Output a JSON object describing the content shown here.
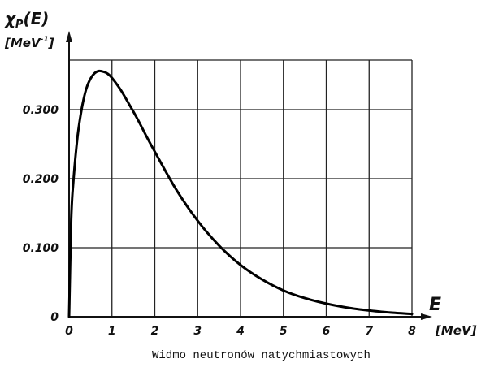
{
  "chart_data": {
    "type": "line",
    "title": "",
    "caption": "Widmo neutronów natychmiastowych",
    "ylabel": {
      "symbol": "χ",
      "subscript": "P",
      "argument": "(E)",
      "unit": "MeV",
      "unit_exponent": "-1"
    },
    "xlabel": {
      "symbol": "E",
      "unit": "MeV"
    },
    "xlim": [
      0,
      8
    ],
    "ylim": [
      0,
      0.36
    ],
    "x_ticks": [
      0,
      1,
      2,
      3,
      4,
      5,
      6,
      7,
      8
    ],
    "x_tick_labels": [
      "0",
      "1",
      "2",
      "3",
      "4",
      "5",
      "6",
      "7",
      "8"
    ],
    "y_ticks": [
      0,
      0.1,
      0.2,
      0.3
    ],
    "y_tick_labels": [
      "0",
      "0.100",
      "0.200",
      "0.300"
    ],
    "grid": true,
    "series": [
      {
        "x": [
          0,
          0.05,
          0.1,
          0.2,
          0.3,
          0.4,
          0.5,
          0.6,
          0.7,
          0.8,
          0.9,
          1.0,
          1.2,
          1.4,
          1.6,
          1.8,
          2.0,
          2.5,
          3.0,
          3.5,
          4.0,
          4.5,
          5.0,
          5.5,
          6.0,
          6.5,
          7.0,
          7.5,
          8.0
        ],
        "y": [
          0.0,
          0.141,
          0.196,
          0.262,
          0.303,
          0.33,
          0.345,
          0.353,
          0.356,
          0.355,
          0.352,
          0.346,
          0.329,
          0.308,
          0.286,
          0.262,
          0.239,
          0.184,
          0.139,
          0.103,
          0.075,
          0.054,
          0.038,
          0.027,
          0.019,
          0.013,
          0.009,
          0.006,
          0.004
        ]
      }
    ]
  }
}
